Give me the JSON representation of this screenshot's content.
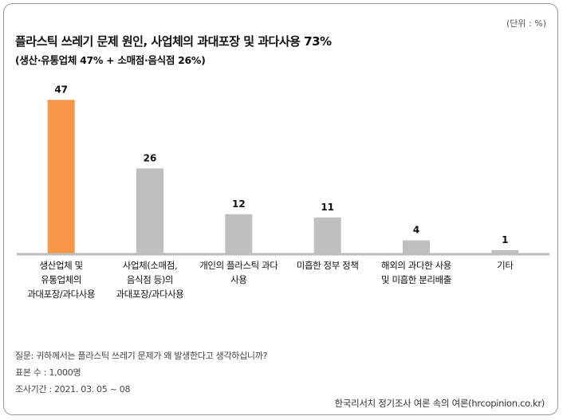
{
  "unit_label": "(단위 : %)",
  "title": "플라스틱 쓰레기 문제 원인, 사업체의  과대포장 및 과다사용 73%",
  "subtitle": "(생산·유통업체 47% + 소매점·음식점 26%)",
  "colors": {
    "highlight": "#f79646",
    "bar": "#bfbfbf",
    "baseline": "#bdbdbd",
    "text": "#111111"
  },
  "chart_data": {
    "type": "bar",
    "categories": [
      [
        "생산업체 및",
        "유통업체의",
        "과대포장/과다사용"
      ],
      [
        "사업체(소매점,",
        "음식점 등)의",
        "과대포장/과다사용"
      ],
      [
        "개인의 플라스틱 과다",
        "사용"
      ],
      [
        "미흡한 정부 정책"
      ],
      [
        "해외의 과다한 사용",
        "및 미흡한 분리배출"
      ],
      [
        "기타"
      ]
    ],
    "values": [
      47,
      26,
      12,
      11,
      4,
      1
    ],
    "highlight_index": 0,
    "ylim": [
      0,
      50
    ],
    "grid": false,
    "title": "",
    "xlabel": "",
    "ylabel": ""
  },
  "footer": {
    "question": "질문:  귀하께서는 플라스틱 쓰레기 문제가 왜 발생한다고 생각하십니까?",
    "sample": "표본 수 : 1,000명",
    "period": "조사기간 : 2021. 03. 05 ~ 08",
    "source": "한국리서치 정기조사 여론 속의 여론(hrcopinion.co.kr)"
  }
}
